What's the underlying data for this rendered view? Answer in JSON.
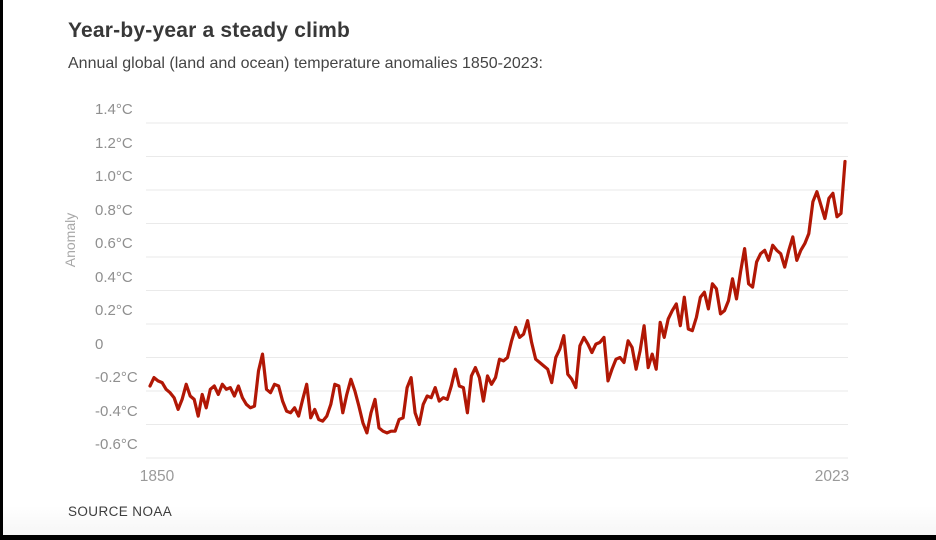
{
  "page": {
    "title": "Year-by-year a steady climb",
    "subtitle": "Annual global (land and ocean) temperature anomalies 1850-2023:",
    "source": "SOURCE NOAA"
  },
  "axes": {
    "y_title": "Anomaly",
    "y_ticks": [
      {
        "label": "1.4°C",
        "value": 1.4
      },
      {
        "label": "1.2°C",
        "value": 1.2
      },
      {
        "label": "1.0°C",
        "value": 1.0
      },
      {
        "label": "0.8°C",
        "value": 0.8
      },
      {
        "label": "0.6°C",
        "value": 0.6
      },
      {
        "label": "0.4°C",
        "value": 0.4
      },
      {
        "label": "0.2°C",
        "value": 0.2
      },
      {
        "label": "0",
        "value": 0
      },
      {
        "label": "-0.2°C",
        "value": -0.2
      },
      {
        "label": "-0.4°C",
        "value": -0.4
      },
      {
        "label": "-0.6°C",
        "value": -0.6
      }
    ],
    "x_ticks": [
      {
        "label": "1850",
        "value": 1850
      },
      {
        "label": "2023",
        "value": 2023
      }
    ]
  },
  "colors": {
    "background": "#ffffff",
    "frame": "#000000",
    "line": "#b11705",
    "grid": "#eaeaea",
    "title_text": "#383838",
    "subtitle_text": "#454545",
    "axis_text": "#8f8f8f",
    "muted_text": "#9a9a9a",
    "source_text": "#3d3d3d"
  },
  "chart_data": {
    "type": "line",
    "title": "Year-by-year a steady climb",
    "subtitle": "Annual global (land and ocean) temperature anomalies 1850-2023:",
    "source": "SOURCE NOAA",
    "xlabel": "",
    "ylabel": "Anomaly",
    "xlim": [
      1850,
      2023
    ],
    "ylim": [
      -0.6,
      1.4
    ],
    "grid": true,
    "legend": false,
    "x_start": 1850,
    "x_end": 2023,
    "x_step": 1,
    "series": [
      {
        "name": "Annual global (land and ocean) temperature anomaly (°C)",
        "color": "#b11705",
        "values": [
          -0.17,
          -0.12,
          -0.14,
          -0.15,
          -0.19,
          -0.21,
          -0.24,
          -0.31,
          -0.25,
          -0.16,
          -0.23,
          -0.25,
          -0.35,
          -0.22,
          -0.3,
          -0.19,
          -0.17,
          -0.22,
          -0.16,
          -0.19,
          -0.18,
          -0.23,
          -0.17,
          -0.24,
          -0.28,
          -0.3,
          -0.29,
          -0.08,
          0.02,
          -0.19,
          -0.21,
          -0.16,
          -0.17,
          -0.26,
          -0.32,
          -0.33,
          -0.3,
          -0.35,
          -0.25,
          -0.16,
          -0.36,
          -0.31,
          -0.37,
          -0.38,
          -0.35,
          -0.28,
          -0.16,
          -0.17,
          -0.33,
          -0.22,
          -0.13,
          -0.2,
          -0.29,
          -0.39,
          -0.45,
          -0.33,
          -0.25,
          -0.42,
          -0.44,
          -0.45,
          -0.44,
          -0.44,
          -0.37,
          -0.36,
          -0.18,
          -0.12,
          -0.33,
          -0.4,
          -0.28,
          -0.23,
          -0.24,
          -0.18,
          -0.26,
          -0.24,
          -0.25,
          -0.17,
          -0.07,
          -0.17,
          -0.18,
          -0.33,
          -0.11,
          -0.06,
          -0.12,
          -0.26,
          -0.11,
          -0.16,
          -0.12,
          -0.01,
          -0.02,
          0.0,
          0.1,
          0.18,
          0.12,
          0.14,
          0.22,
          0.09,
          -0.01,
          -0.03,
          -0.05,
          -0.07,
          -0.15,
          0.0,
          0.05,
          0.13,
          -0.1,
          -0.13,
          -0.18,
          0.07,
          0.12,
          0.08,
          0.03,
          0.08,
          0.09,
          0.12,
          -0.14,
          -0.07,
          -0.01,
          0.0,
          -0.03,
          0.1,
          0.06,
          -0.07,
          0.04,
          0.19,
          -0.06,
          0.02,
          -0.07,
          0.21,
          0.12,
          0.23,
          0.28,
          0.32,
          0.19,
          0.36,
          0.17,
          0.16,
          0.24,
          0.36,
          0.39,
          0.29,
          0.44,
          0.41,
          0.26,
          0.28,
          0.34,
          0.47,
          0.35,
          0.51,
          0.65,
          0.44,
          0.42,
          0.57,
          0.62,
          0.64,
          0.58,
          0.67,
          0.64,
          0.62,
          0.54,
          0.64,
          0.72,
          0.58,
          0.64,
          0.68,
          0.74,
          0.93,
          0.99,
          0.91,
          0.83,
          0.95,
          0.98,
          0.84,
          0.86,
          1.17
        ]
      }
    ]
  }
}
